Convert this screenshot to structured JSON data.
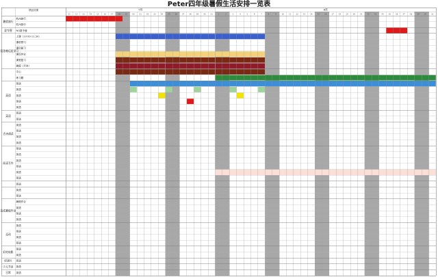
{
  "title": "Peter四年级暑假生活安排一览表",
  "table": {
    "header_label": "项目分类",
    "months": [
      "7月",
      "8月"
    ],
    "july_days": [
      11,
      12,
      13,
      14,
      15,
      16,
      17,
      18,
      19,
      20,
      21,
      22,
      23,
      24,
      25,
      26,
      27,
      28,
      29,
      30,
      31
    ],
    "august_days": [
      1,
      2,
      3,
      4,
      5,
      6,
      7,
      8,
      9,
      10,
      11,
      12,
      13,
      14,
      15,
      16,
      17,
      18,
      19,
      20,
      21,
      22,
      23,
      24,
      25,
      26,
      27,
      28,
      29,
      30,
      31
    ],
    "shaded_day_indices": [
      7,
      8,
      14,
      15,
      21,
      22,
      28,
      29,
      35,
      36,
      42,
      43,
      49,
      50
    ],
    "sections": [
      {
        "name": "暑假旅行",
        "items": [
          "杭州旅行",
          "杭州旅行"
        ]
      },
      {
        "name": "夏令营",
        "items": [
          "NG夏令营"
        ]
      },
      {
        "name": "学而思教培班学习",
        "items": [
          "上课（10:00-11:30）",
          "课前预习",
          "课后复习",
          "课后作业",
          "课堂复习",
          "暑假（平时）"
        ]
      },
      {
        "name": "",
        "items": [
          "中心",
          "练习题"
        ]
      },
      {
        "name": "英语",
        "items": [
          "英语",
          "英语",
          "英语",
          "英语",
          "英语"
        ]
      },
      {
        "name": "英语",
        "items": [
          "英语",
          "英语"
        ]
      },
      {
        "name": "古诗诵读",
        "items": [
          "英语",
          "英语",
          "英语",
          "英语"
        ]
      },
      {
        "name": "阅读写作",
        "items": [
          "英语",
          "英语",
          "英语",
          "英语",
          "英语",
          "英语"
        ]
      },
      {
        "name": "",
        "items": [
          "英语"
        ]
      },
      {
        "name": "",
        "items": [
          "英语",
          "英语"
        ]
      },
      {
        "name": "完成暑假作业",
        "items": [
          "暑假作业",
          "英语",
          "英语",
          "英语"
        ]
      },
      {
        "name": "运动",
        "items": [
          "英语",
          "英语",
          "英语",
          "英语"
        ]
      },
      {
        "name": "好的电影",
        "items": [
          "英语",
          "英语"
        ]
      },
      {
        "name": "纪录片",
        "items": [
          "英语"
        ]
      },
      {
        "name": "少儿节目",
        "items": [
          "英语"
        ]
      },
      {
        "name": "日常",
        "items": [
          "英语"
        ]
      }
    ]
  },
  "colors": {
    "red": "#e01818",
    "blue": "#3a5fcf",
    "yellow_tan": "#f3d27a",
    "dark_brown": "#7a2a14",
    "crimson": "#8f1b2a",
    "green": "#2e8b3e",
    "light_blue": "#3d8ed8",
    "light_green": "#9ed39a",
    "yellow": "#f2e400",
    "pink_row": "#fbe0d8"
  }
}
